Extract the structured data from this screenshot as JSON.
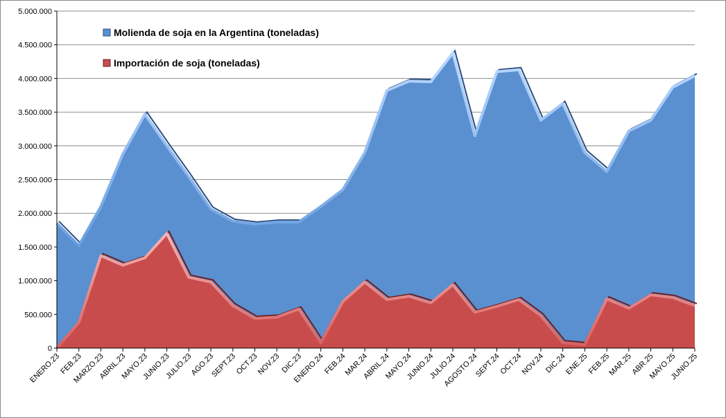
{
  "chart_data": {
    "type": "area",
    "categories": [
      "ENERO.23",
      "FEB.23",
      "MARZO.23",
      "ABRIL.23",
      "MAYO.23",
      "JUNIO.23",
      "JULIO.23",
      "AGO.23",
      "SEPT.23",
      "OCT.23",
      "NOV.23",
      "DIC.23",
      "ENERO.24",
      "FEB.24",
      "MAR.24",
      "ABRIL.24",
      "MAYO.24",
      "JUNIO.24",
      "JULIO.24",
      "AGOSTO.24",
      "SEPT.24",
      "OCT.24",
      "NOV.24",
      "DIC.24",
      "ENE.25",
      "FEB.25",
      "MAR.25",
      "ABR.25",
      "MAYO.25",
      "JUNIO.25"
    ],
    "series": [
      {
        "name": "Molienda de soja en la Argentina (toneladas)",
        "color": "#5a8fd0",
        "values": [
          1850000,
          1520000,
          2100000,
          2880000,
          3470000,
          3000000,
          2540000,
          2060000,
          1880000,
          1840000,
          1870000,
          1870000,
          2100000,
          2350000,
          2900000,
          3820000,
          3960000,
          3950000,
          4380000,
          3150000,
          4100000,
          4130000,
          3380000,
          3630000,
          2900000,
          2620000,
          3220000,
          3380000,
          3870000,
          4040000
        ]
      },
      {
        "name": "Importación de soja (toneladas)",
        "color": "#c94c4c",
        "values": [
          0,
          380000,
          1370000,
          1230000,
          1340000,
          1700000,
          1050000,
          980000,
          630000,
          440000,
          460000,
          580000,
          80000,
          690000,
          980000,
          720000,
          770000,
          670000,
          940000,
          530000,
          620000,
          720000,
          480000,
          80000,
          50000,
          730000,
          590000,
          790000,
          750000,
          630000
        ]
      }
    ],
    "y_ticks": [
      "0",
      "500.000",
      "1.000.000",
      "1.500.000",
      "2.000.000",
      "2.500.000",
      "3.000.000",
      "3.500.000",
      "4.000.000",
      "4.500.000",
      "5.000.000"
    ],
    "ylim": [
      0,
      5000000
    ],
    "grid": true,
    "legend_position": "top-left"
  }
}
